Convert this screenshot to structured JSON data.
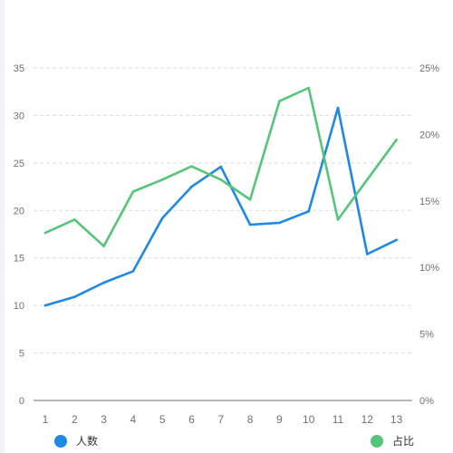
{
  "chart_data": {
    "type": "line",
    "x": [
      "1",
      "2",
      "3",
      "4",
      "5",
      "6",
      "7",
      "8",
      "9",
      "10",
      "11",
      "12",
      "13"
    ],
    "series": [
      {
        "name": "人数",
        "axis": "left",
        "color": "#1e88e5",
        "values": [
          10.0,
          10.9,
          12.4,
          13.6,
          19.2,
          22.5,
          24.6,
          18.5,
          18.7,
          19.9,
          30.8,
          15.4,
          16.9
        ]
      },
      {
        "name": "占比",
        "axis": "right",
        "color": "#55c57a",
        "values": [
          12.6,
          13.6,
          11.6,
          15.7,
          16.6,
          17.6,
          16.6,
          15.1,
          22.5,
          23.5,
          13.6,
          16.6,
          19.6
        ]
      }
    ],
    "y_left": {
      "min": 0,
      "max": 35,
      "ticks": [
        0,
        5,
        10,
        15,
        20,
        25,
        30,
        35
      ]
    },
    "y_right": {
      "min": 0,
      "max": 25,
      "ticks": [
        "0%",
        "5%",
        "10%",
        "15%",
        "20%",
        "25%"
      ],
      "tick_values": [
        0,
        5,
        10,
        15,
        20,
        25
      ]
    },
    "grid": "horizontal-dashed",
    "legend": "bottom"
  }
}
